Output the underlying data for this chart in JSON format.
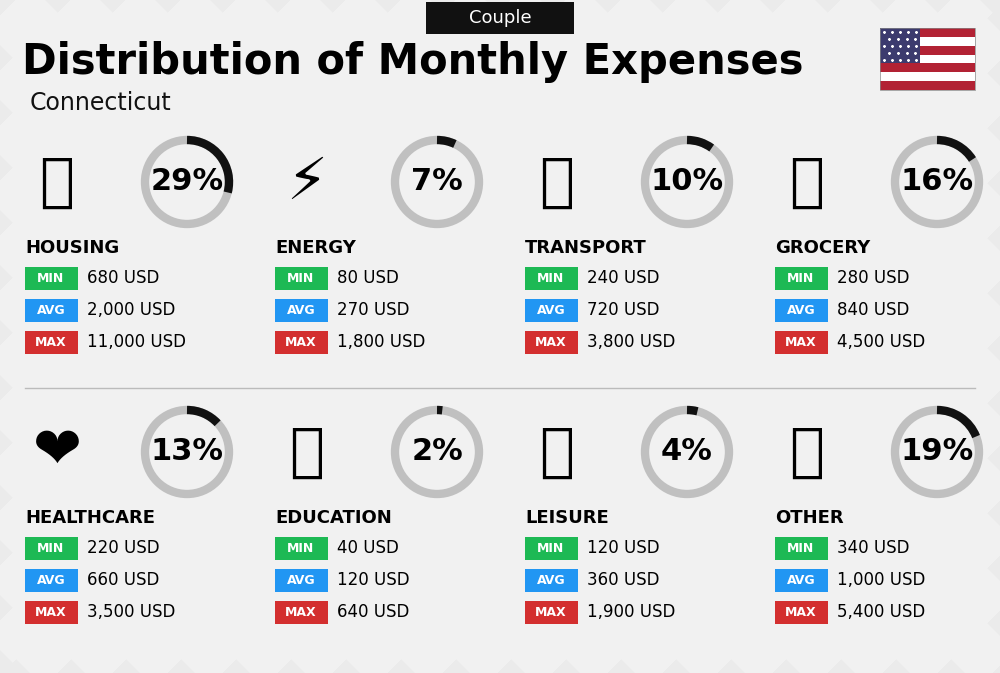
{
  "title": "Distribution of Monthly Expenses",
  "subtitle": "Connecticut",
  "badge": "Couple",
  "bg_color": "#ebebeb",
  "categories": [
    {
      "name": "HOUSING",
      "pct": 29,
      "min_val": "680 USD",
      "avg_val": "2,000 USD",
      "max_val": "11,000 USD",
      "emoji": "🏙",
      "row": 0,
      "col": 0
    },
    {
      "name": "ENERGY",
      "pct": 7,
      "min_val": "80 USD",
      "avg_val": "270 USD",
      "max_val": "1,800 USD",
      "emoji": "⚡",
      "row": 0,
      "col": 1
    },
    {
      "name": "TRANSPORT",
      "pct": 10,
      "min_val": "240 USD",
      "avg_val": "720 USD",
      "max_val": "3,800 USD",
      "emoji": "🚌",
      "row": 0,
      "col": 2
    },
    {
      "name": "GROCERY",
      "pct": 16,
      "min_val": "280 USD",
      "avg_val": "840 USD",
      "max_val": "4,500 USD",
      "emoji": "🛒",
      "row": 0,
      "col": 3
    },
    {
      "name": "HEALTHCARE",
      "pct": 13,
      "min_val": "220 USD",
      "avg_val": "660 USD",
      "max_val": "3,500 USD",
      "emoji": "❤️",
      "row": 1,
      "col": 0
    },
    {
      "name": "EDUCATION",
      "pct": 2,
      "min_val": "40 USD",
      "avg_val": "120 USD",
      "max_val": "640 USD",
      "emoji": "🎓",
      "row": 1,
      "col": 1
    },
    {
      "name": "LEISURE",
      "pct": 4,
      "min_val": "120 USD",
      "avg_val": "360 USD",
      "max_val": "1,900 USD",
      "emoji": "🛍",
      "row": 1,
      "col": 2
    },
    {
      "name": "OTHER",
      "pct": 19,
      "min_val": "340 USD",
      "avg_val": "1,000 USD",
      "max_val": "5,400 USD",
      "emoji": "👜",
      "row": 1,
      "col": 3
    }
  ],
  "min_color": "#1db954",
  "avg_color": "#2196f3",
  "max_color": "#d32f2f",
  "label_color": "#ffffff",
  "arc_color_filled": "#111111",
  "arc_color_empty": "#c0c0c0",
  "title_fontsize": 30,
  "subtitle_fontsize": 17,
  "badge_fontsize": 13,
  "cat_fontsize": 13,
  "val_fontsize": 12,
  "pct_fontsize": 22
}
